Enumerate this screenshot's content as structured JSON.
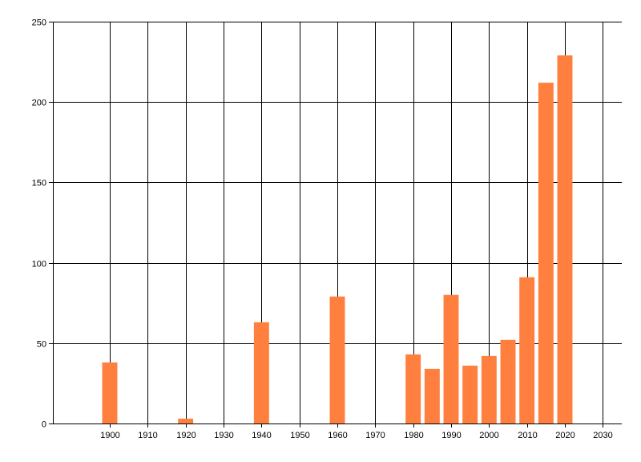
{
  "chart_data": {
    "type": "bar",
    "x": [
      1900,
      1920,
      1940,
      1960,
      1980,
      1985,
      1990,
      1995,
      2000,
      2005,
      2010,
      2015,
      2020
    ],
    "values": [
      38,
      3,
      63,
      79,
      43,
      34,
      80,
      36,
      42,
      52,
      91,
      212,
      229
    ],
    "xlim": [
      1885,
      2035
    ],
    "ylim": [
      0,
      250
    ],
    "x_ticks": [
      "1900",
      "1910",
      "1920",
      "1930",
      "1940",
      "1950",
      "1960",
      "1970",
      "1980",
      "1990",
      "2000",
      "2010",
      "2020",
      "2030"
    ],
    "y_ticks": [
      "0",
      "50",
      "100",
      "150",
      "200",
      "250"
    ],
    "grid": true,
    "bar_color": "#ff7f3f",
    "grid_color": "#000000",
    "title": "",
    "xlabel": "",
    "ylabel": ""
  }
}
